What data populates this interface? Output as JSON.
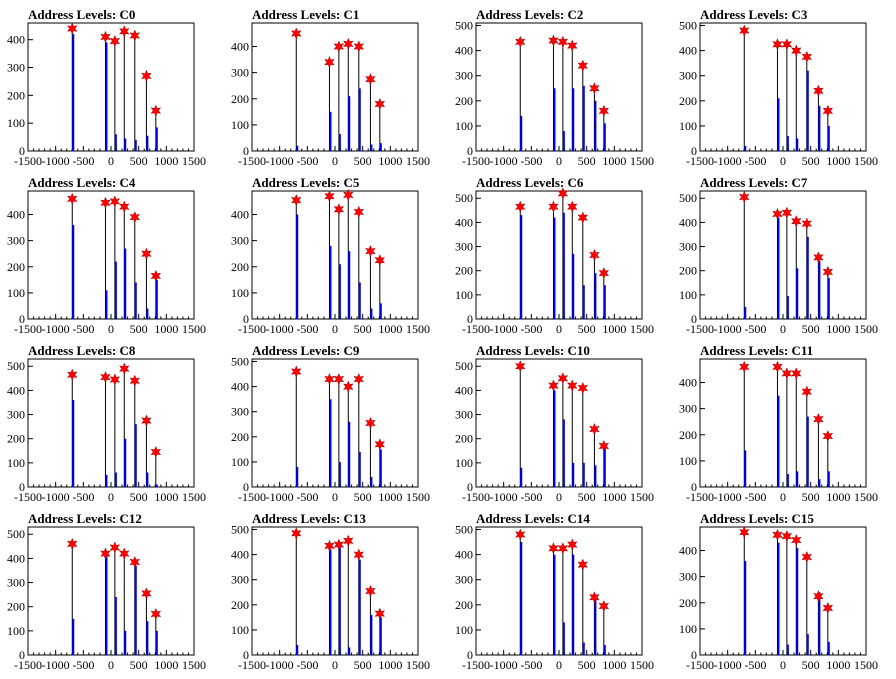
{
  "chart_data": {
    "type": "bar",
    "layout": {
      "rows": 4,
      "cols": 4
    },
    "panels": [
      {
        "title": "Address Levels: C0",
        "ylim": [
          0,
          460
        ],
        "yticks": [
          0,
          100,
          200,
          300,
          400
        ],
        "stars": [
          [
            -700,
            440
          ],
          [
            -100,
            410
          ],
          [
            70,
            395
          ],
          [
            240,
            430
          ],
          [
            430,
            415
          ],
          [
            640,
            270
          ],
          [
            810,
            145
          ]
        ],
        "blue": [
          [
            -700,
            420
          ],
          [
            -100,
            390
          ],
          [
            70,
            60
          ],
          [
            240,
            45
          ],
          [
            430,
            40
          ],
          [
            640,
            55
          ],
          [
            810,
            85
          ]
        ]
      },
      {
        "title": "Address Levels: C1",
        "ylim": [
          0,
          490
        ],
        "yticks": [
          0,
          100,
          200,
          300,
          400
        ],
        "stars": [
          [
            -700,
            450
          ],
          [
            -100,
            340
          ],
          [
            70,
            400
          ],
          [
            240,
            410
          ],
          [
            430,
            400
          ],
          [
            640,
            275
          ],
          [
            810,
            180
          ]
        ],
        "blue": [
          [
            -700,
            20
          ],
          [
            -100,
            150
          ],
          [
            70,
            65
          ],
          [
            240,
            210
          ],
          [
            430,
            240
          ],
          [
            640,
            25
          ],
          [
            810,
            30
          ]
        ]
      },
      {
        "title": "Address Levels: C2",
        "ylim": [
          0,
          510
        ],
        "yticks": [
          0,
          100,
          200,
          300,
          400,
          500
        ],
        "stars": [
          [
            -700,
            435
          ],
          [
            -100,
            440
          ],
          [
            70,
            435
          ],
          [
            240,
            420
          ],
          [
            430,
            340
          ],
          [
            640,
            250
          ],
          [
            810,
            160
          ]
        ],
        "blue": [
          [
            -700,
            140
          ],
          [
            -100,
            250
          ],
          [
            70,
            80
          ],
          [
            240,
            250
          ],
          [
            430,
            260
          ],
          [
            640,
            200
          ],
          [
            810,
            110
          ]
        ]
      },
      {
        "title": "Address Levels: C3",
        "ylim": [
          0,
          510
        ],
        "yticks": [
          0,
          100,
          200,
          300,
          400,
          500
        ],
        "stars": [
          [
            -700,
            480
          ],
          [
            -100,
            425
          ],
          [
            70,
            425
          ],
          [
            240,
            400
          ],
          [
            430,
            375
          ],
          [
            640,
            240
          ],
          [
            810,
            160
          ]
        ],
        "blue": [
          [
            -700,
            20
          ],
          [
            -100,
            210
          ],
          [
            70,
            60
          ],
          [
            240,
            50
          ],
          [
            430,
            320
          ],
          [
            640,
            180
          ],
          [
            810,
            100
          ]
        ]
      },
      {
        "title": "Address Levels: C4",
        "ylim": [
          0,
          490
        ],
        "yticks": [
          0,
          100,
          200,
          300,
          400
        ],
        "stars": [
          [
            -700,
            460
          ],
          [
            -100,
            445
          ],
          [
            70,
            450
          ],
          [
            240,
            430
          ],
          [
            430,
            390
          ],
          [
            640,
            250
          ],
          [
            810,
            165
          ]
        ],
        "blue": [
          [
            -700,
            360
          ],
          [
            -100,
            110
          ],
          [
            70,
            220
          ],
          [
            240,
            270
          ],
          [
            430,
            140
          ],
          [
            640,
            40
          ],
          [
            810,
            150
          ]
        ]
      },
      {
        "title": "Address Levels: C5",
        "ylim": [
          0,
          490
        ],
        "yticks": [
          0,
          100,
          200,
          300,
          400
        ],
        "stars": [
          [
            -700,
            455
          ],
          [
            -100,
            470
          ],
          [
            70,
            420
          ],
          [
            240,
            475
          ],
          [
            430,
            410
          ],
          [
            640,
            260
          ],
          [
            810,
            225
          ]
        ],
        "blue": [
          [
            -700,
            400
          ],
          [
            -100,
            280
          ],
          [
            70,
            210
          ],
          [
            240,
            260
          ],
          [
            430,
            140
          ],
          [
            640,
            40
          ],
          [
            810,
            60
          ]
        ]
      },
      {
        "title": "Address Levels: C6",
        "ylim": [
          0,
          530
        ],
        "yticks": [
          0,
          100,
          200,
          300,
          400,
          500
        ],
        "stars": [
          [
            -700,
            465
          ],
          [
            -100,
            465
          ],
          [
            70,
            520
          ],
          [
            240,
            465
          ],
          [
            430,
            420
          ],
          [
            640,
            265
          ],
          [
            810,
            190
          ]
        ],
        "blue": [
          [
            -700,
            430
          ],
          [
            -100,
            420
          ],
          [
            70,
            440
          ],
          [
            240,
            270
          ],
          [
            430,
            140
          ],
          [
            640,
            190
          ],
          [
            810,
            140
          ]
        ]
      },
      {
        "title": "Address Levels: C7",
        "ylim": [
          0,
          530
        ],
        "yticks": [
          0,
          100,
          200,
          300,
          400,
          500
        ],
        "stars": [
          [
            -700,
            505
          ],
          [
            -100,
            435
          ],
          [
            70,
            440
          ],
          [
            240,
            405
          ],
          [
            430,
            395
          ],
          [
            640,
            255
          ],
          [
            810,
            195
          ]
        ],
        "blue": [
          [
            -700,
            50
          ],
          [
            -100,
            420
          ],
          [
            70,
            95
          ],
          [
            240,
            210
          ],
          [
            430,
            340
          ],
          [
            640,
            240
          ],
          [
            810,
            170
          ]
        ]
      },
      {
        "title": "Address Levels: C8",
        "ylim": [
          0,
          530
        ],
        "yticks": [
          0,
          100,
          200,
          300,
          400,
          500
        ],
        "stars": [
          [
            -700,
            465
          ],
          [
            -100,
            455
          ],
          [
            70,
            445
          ],
          [
            240,
            490
          ],
          [
            430,
            440
          ],
          [
            640,
            275
          ],
          [
            810,
            145
          ]
        ],
        "blue": [
          [
            -700,
            360
          ],
          [
            -100,
            50
          ],
          [
            70,
            60
          ],
          [
            240,
            200
          ],
          [
            430,
            260
          ],
          [
            640,
            60
          ],
          [
            810,
            10
          ]
        ]
      },
      {
        "title": "Address Levels: C9",
        "ylim": [
          0,
          510
        ],
        "yticks": [
          0,
          100,
          200,
          300,
          400,
          500
        ],
        "stars": [
          [
            -700,
            460
          ],
          [
            -100,
            430
          ],
          [
            70,
            430
          ],
          [
            240,
            400
          ],
          [
            430,
            430
          ],
          [
            640,
            255
          ],
          [
            810,
            170
          ]
        ],
        "blue": [
          [
            -700,
            80
          ],
          [
            -100,
            350
          ],
          [
            70,
            100
          ],
          [
            240,
            260
          ],
          [
            430,
            140
          ],
          [
            640,
            40
          ],
          [
            810,
            150
          ]
        ]
      },
      {
        "title": "Address Levels: C10",
        "ylim": [
          0,
          530
        ],
        "yticks": [
          0,
          100,
          200,
          300,
          400,
          500
        ],
        "stars": [
          [
            -700,
            500
          ],
          [
            -100,
            420
          ],
          [
            70,
            450
          ],
          [
            240,
            420
          ],
          [
            430,
            410
          ],
          [
            640,
            240
          ],
          [
            810,
            170
          ]
        ],
        "blue": [
          [
            -700,
            80
          ],
          [
            -100,
            400
          ],
          [
            70,
            280
          ],
          [
            240,
            100
          ],
          [
            430,
            100
          ],
          [
            640,
            90
          ],
          [
            810,
            160
          ]
        ]
      },
      {
        "title": "Address Levels: C11",
        "ylim": [
          0,
          490
        ],
        "yticks": [
          0,
          100,
          200,
          300,
          400
        ],
        "stars": [
          [
            -700,
            460
          ],
          [
            -100,
            460
          ],
          [
            70,
            435
          ],
          [
            240,
            435
          ],
          [
            430,
            365
          ],
          [
            640,
            260
          ],
          [
            810,
            195
          ]
        ],
        "blue": [
          [
            -700,
            140
          ],
          [
            -100,
            350
          ],
          [
            70,
            50
          ],
          [
            240,
            60
          ],
          [
            430,
            270
          ],
          [
            640,
            30
          ],
          [
            810,
            60
          ]
        ]
      },
      {
        "title": "Address Levels: C12",
        "ylim": [
          0,
          530
        ],
        "yticks": [
          0,
          100,
          200,
          300,
          400,
          500
        ],
        "stars": [
          [
            -700,
            460
          ],
          [
            -100,
            420
          ],
          [
            70,
            445
          ],
          [
            240,
            420
          ],
          [
            430,
            385
          ],
          [
            640,
            255
          ],
          [
            810,
            170
          ]
        ],
        "blue": [
          [
            -700,
            150
          ],
          [
            -100,
            420
          ],
          [
            70,
            240
          ],
          [
            240,
            100
          ],
          [
            430,
            370
          ],
          [
            640,
            140
          ],
          [
            810,
            100
          ]
        ]
      },
      {
        "title": "Address Levels: C13",
        "ylim": [
          0,
          510
        ],
        "yticks": [
          0,
          100,
          200,
          300,
          400,
          500
        ],
        "stars": [
          [
            -700,
            485
          ],
          [
            -100,
            435
          ],
          [
            70,
            440
          ],
          [
            240,
            455
          ],
          [
            430,
            400
          ],
          [
            640,
            255
          ],
          [
            810,
            165
          ]
        ],
        "blue": [
          [
            -700,
            40
          ],
          [
            -100,
            420
          ],
          [
            70,
            430
          ],
          [
            240,
            30
          ],
          [
            430,
            380
          ],
          [
            640,
            160
          ],
          [
            810,
            150
          ]
        ]
      },
      {
        "title": "Address Levels: C14",
        "ylim": [
          0,
          510
        ],
        "yticks": [
          0,
          100,
          200,
          300,
          400,
          500
        ],
        "stars": [
          [
            -700,
            480
          ],
          [
            -100,
            425
          ],
          [
            70,
            425
          ],
          [
            240,
            440
          ],
          [
            430,
            360
          ],
          [
            640,
            230
          ],
          [
            810,
            195
          ]
        ],
        "blue": [
          [
            -700,
            450
          ],
          [
            -100,
            400
          ],
          [
            70,
            130
          ],
          [
            240,
            400
          ],
          [
            430,
            50
          ],
          [
            640,
            220
          ],
          [
            810,
            40
          ]
        ]
      },
      {
        "title": "Address Levels: C15",
        "ylim": [
          0,
          490
        ],
        "yticks": [
          0,
          100,
          200,
          300,
          400
        ],
        "stars": [
          [
            -700,
            470
          ],
          [
            -100,
            460
          ],
          [
            70,
            455
          ],
          [
            240,
            440
          ],
          [
            430,
            375
          ],
          [
            640,
            225
          ],
          [
            810,
            180
          ]
        ],
        "blue": [
          [
            -700,
            360
          ],
          [
            -100,
            430
          ],
          [
            70,
            40
          ],
          [
            240,
            410
          ],
          [
            430,
            80
          ],
          [
            640,
            240
          ],
          [
            810,
            50
          ]
        ]
      }
    ],
    "xlim": [
      -1500,
      1500
    ],
    "xticks": [
      -1500,
      -1000,
      -500,
      0,
      500,
      1000,
      1500
    ],
    "xtick_labels": [
      "-1500",
      "-1000",
      "-500",
      "0",
      "500",
      "1000",
      "1500"
    ],
    "colors": {
      "blue": "#0000ff",
      "black": "#000000",
      "star": "#ff0000"
    }
  }
}
